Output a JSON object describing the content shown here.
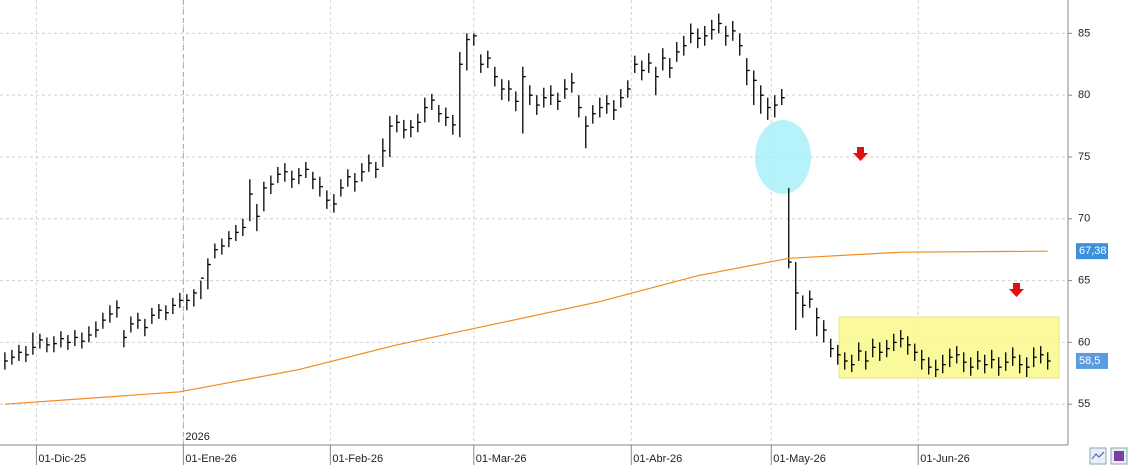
{
  "chart_data": {
    "type": "ohlc",
    "ylim": [
      51.7,
      87.7
    ],
    "yticks": [
      55,
      60,
      65,
      70,
      75,
      80,
      85
    ],
    "grid": true,
    "xlim": [
      -0.7,
      151.9
    ],
    "xticks": [
      {
        "value": 4.5,
        "label": "01-Dic-25"
      },
      {
        "value": 25.5,
        "label": "01-Ene-26"
      },
      {
        "value": 46.5,
        "label": "01-Feb-26"
      },
      {
        "value": 67,
        "label": "01-Mar-26"
      },
      {
        "value": 89.5,
        "label": "01-Abr-26"
      },
      {
        "value": 109.5,
        "label": "01-May-26"
      },
      {
        "value": 130.5,
        "label": "01-Jun-26"
      }
    ],
    "year_marker": {
      "value": 25.5,
      "label": "2026"
    },
    "color": "#000000",
    "high": [
      59.2,
      59.4,
      59.8,
      59.7,
      60.8,
      60.7,
      60.4,
      60.5,
      60.9,
      60.6,
      61.0,
      60.8,
      61.3,
      61.7,
      62.4,
      63.0,
      63.4,
      61.0,
      62.1,
      62.4,
      61.9,
      62.8,
      63.1,
      63.0,
      63.6,
      64.0,
      63.9,
      64.3,
      65.0,
      66.8,
      68.0,
      68.4,
      69.0,
      69.5,
      70.0,
      73.2,
      71.2,
      73.0,
      73.5,
      74.2,
      74.5,
      73.9,
      74.1,
      74.6,
      73.8,
      73.4,
      72.3,
      72.0,
      73.2,
      74.0,
      73.7,
      74.5,
      75.2,
      74.6,
      76.5,
      78.3,
      78.4,
      78.0,
      78.0,
      78.5,
      79.8,
      80.1,
      79.2,
      79.0,
      78.4,
      83.5,
      85.0,
      85.0,
      83.3,
      83.6,
      82.3,
      81.3,
      81.2,
      80.3,
      82.3,
      80.8,
      80.0,
      80.6,
      80.8,
      80.2,
      81.3,
      81.8,
      80.0,
      78.3,
      79.2,
      79.8,
      80.0,
      79.6,
      80.5,
      81.2,
      83.2,
      82.8,
      83.4,
      82.3,
      83.8,
      83.0,
      84.3,
      84.8,
      85.8,
      85.4,
      85.6,
      86.1,
      86.6,
      85.6,
      86.0,
      85.0,
      83.0,
      82.0,
      80.8,
      79.8,
      80.0,
      80.5,
      72.5,
      66.5,
      63.8,
      64.2,
      62.8,
      61.8,
      60.3,
      59.8,
      59.2,
      59.0,
      60.0,
      59.3,
      60.3,
      60.0,
      60.2,
      60.7,
      61.0,
      60.5,
      59.9,
      59.4,
      58.8,
      58.6,
      59.0,
      59.5,
      59.7,
      59.2,
      58.8,
      59.3,
      59.0,
      59.4,
      58.8,
      59.2,
      59.6,
      59.0,
      58.8,
      59.6,
      59.7,
      59.2
    ],
    "low": [
      57.8,
      58.2,
      58.5,
      58.4,
      59.0,
      59.5,
      59.2,
      59.2,
      59.6,
      59.4,
      59.7,
      59.5,
      60.0,
      60.4,
      61.1,
      61.6,
      62.0,
      59.6,
      60.8,
      61.1,
      60.5,
      61.5,
      61.9,
      61.8,
      62.3,
      62.8,
      62.6,
      62.9,
      63.5,
      64.3,
      66.8,
      67.1,
      67.7,
      68.2,
      68.6,
      69.8,
      69.0,
      70.6,
      72.0,
      72.9,
      73.0,
      72.5,
      72.8,
      73.3,
      72.4,
      71.8,
      70.8,
      70.5,
      71.8,
      72.6,
      72.2,
      73.0,
      73.8,
      73.3,
      74.2,
      75.0,
      77.0,
      76.5,
      76.6,
      77.0,
      77.8,
      78.8,
      77.8,
      77.5,
      76.8,
      76.6,
      82.0,
      84.0,
      81.8,
      82.2,
      80.7,
      79.6,
      79.5,
      78.7,
      76.9,
      79.2,
      78.4,
      79.0,
      79.2,
      78.8,
      79.7,
      80.2,
      78.2,
      75.7,
      77.7,
      78.2,
      78.5,
      78.0,
      79.0,
      79.8,
      81.8,
      81.2,
      81.8,
      80.0,
      82.0,
      81.4,
      82.7,
      83.2,
      84.2,
      83.8,
      84.0,
      84.5,
      85.0,
      84.0,
      84.4,
      83.2,
      80.8,
      79.2,
      78.5,
      78.0,
      78.2,
      79.2,
      66.0,
      61.0,
      62.0,
      62.8,
      60.5,
      60.0,
      58.8,
      58.2,
      57.8,
      57.6,
      58.5,
      57.8,
      58.8,
      58.5,
      58.8,
      59.3,
      59.6,
      59.0,
      58.5,
      57.8,
      57.4,
      57.2,
      57.5,
      58.0,
      58.3,
      57.6,
      57.3,
      57.8,
      57.5,
      57.9,
      57.3,
      57.7,
      58.1,
      57.5,
      57.2,
      58.0,
      58.3,
      57.8
    ],
    "close": [
      58.5,
      58.8,
      59.2,
      59.0,
      59.6,
      60.2,
      59.8,
      59.9,
      60.3,
      60.0,
      60.4,
      60.1,
      60.6,
      61.0,
      61.8,
      62.3,
      62.8,
      60.4,
      61.5,
      61.8,
      61.2,
      62.2,
      62.6,
      62.4,
      63.0,
      63.4,
      63.4,
      64.0,
      65.2,
      66.3,
      67.5,
      67.8,
      68.4,
      68.9,
      69.3,
      72.0,
      70.2,
      72.5,
      72.8,
      73.6,
      73.8,
      73.2,
      73.5,
      74.0,
      73.2,
      72.6,
      71.5,
      71.2,
      72.5,
      73.4,
      73.0,
      73.8,
      74.5,
      74.0,
      75.5,
      77.5,
      77.8,
      77.2,
      77.4,
      77.8,
      79.0,
      79.6,
      78.5,
      78.2,
      77.6,
      82.5,
      84.5,
      84.8,
      82.5,
      83.0,
      81.5,
      80.5,
      80.5,
      79.5,
      81.5,
      80.0,
      79.2,
      79.8,
      80.0,
      79.5,
      80.5,
      81.0,
      79.0,
      77.5,
      78.5,
      79.0,
      79.3,
      78.8,
      79.8,
      80.5,
      82.5,
      82.0,
      82.6,
      81.5,
      83.0,
      82.2,
      83.5,
      84.0,
      85.0,
      84.6,
      84.8,
      85.3,
      85.8,
      84.8,
      85.2,
      84.0,
      82.0,
      81.2,
      80.0,
      79.0,
      79.2,
      79.8,
      66.5,
      64.0,
      63.0,
      63.5,
      62.0,
      61.0,
      59.5,
      59.0,
      58.5,
      58.2,
      59.3,
      58.5,
      59.6,
      59.2,
      59.5,
      60.0,
      60.3,
      59.8,
      59.2,
      58.6,
      58.0,
      57.8,
      58.2,
      58.8,
      59.0,
      58.4,
      58.0,
      58.5,
      58.2,
      58.6,
      58.0,
      58.4,
      58.8,
      58.2,
      58.0,
      58.8,
      59.0,
      58.5
    ],
    "last_label": {
      "value": 58.5,
      "label": "58,5"
    },
    "ma": {
      "color": "#f08c1e",
      "x": [
        0,
        25,
        42,
        56,
        71,
        85,
        99,
        112,
        128,
        149
      ],
      "values": [
        55.0,
        56.0,
        57.8,
        59.8,
        61.6,
        63.3,
        65.4,
        66.8,
        67.3,
        67.38
      ],
      "last_label": "67,38"
    }
  }
}
